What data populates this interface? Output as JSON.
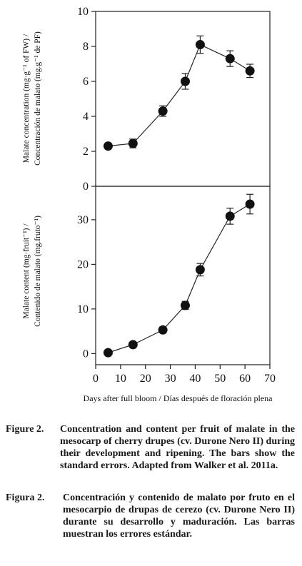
{
  "chart_data": [
    {
      "type": "line",
      "title": "",
      "xlabel": "Days after full bloom / Días después de floración plena",
      "ylabel_line1": "Malate concentration (mg·g⁻¹ of FW) /",
      "ylabel_line2": "Concentración de malato (mg.g⁻¹ de PF)",
      "xlim": [
        0,
        70
      ],
      "ylim": [
        0,
        10
      ],
      "yticks": [
        0,
        2,
        4,
        6,
        8,
        10
      ],
      "ytick_labels": [
        "0",
        "2",
        "4",
        "6",
        "8",
        "10"
      ],
      "x": [
        5,
        15,
        27,
        36,
        42,
        54,
        62
      ],
      "y": [
        2.3,
        2.45,
        4.3,
        6.0,
        8.1,
        7.3,
        6.6
      ],
      "error": [
        0.12,
        0.25,
        0.3,
        0.45,
        0.5,
        0.45,
        0.38
      ]
    },
    {
      "type": "line",
      "title": "",
      "xlabel": "Days after full bloom / Días después de floración plena",
      "ylabel_line1": "Malate content (mg·fruit⁻¹) /",
      "ylabel_line2": "Contenido de malato (mg.fruto⁻¹)",
      "xlim": [
        0,
        70
      ],
      "xticks": [
        0,
        10,
        20,
        30,
        40,
        50,
        60,
        70
      ],
      "xtick_labels": [
        "0",
        "10",
        "20",
        "30",
        "40",
        "50",
        "60",
        "70"
      ],
      "ylim": [
        -2.5,
        37.5
      ],
      "yticks": [
        0,
        10,
        20,
        30
      ],
      "ytick_labels": [
        "0",
        "10",
        "20",
        "30"
      ],
      "x": [
        5,
        15,
        27,
        36,
        42,
        54,
        62
      ],
      "y": [
        0.2,
        2.0,
        5.3,
        10.8,
        18.8,
        30.8,
        33.5
      ],
      "error": [
        0.3,
        0.5,
        0.6,
        0.9,
        1.4,
        1.8,
        2.2
      ]
    }
  ],
  "caption_en": {
    "number": "Figure 2.",
    "text": "Concentration and content per fruit of malate in the mesocarp of cherry drupes (cv. Durone Nero II) during their development and ripening. The bars show the standard errors. Adapted from Walker et al. 2011a."
  },
  "caption_es": {
    "number": "Figura 2.",
    "text": "Concentración y contenido de malato por fruto en el mesocarpio de drupas de cerezo (cv. Durone Nero II) durante su desarrollo y maduración. Las barras muestran los errores estándar."
  }
}
